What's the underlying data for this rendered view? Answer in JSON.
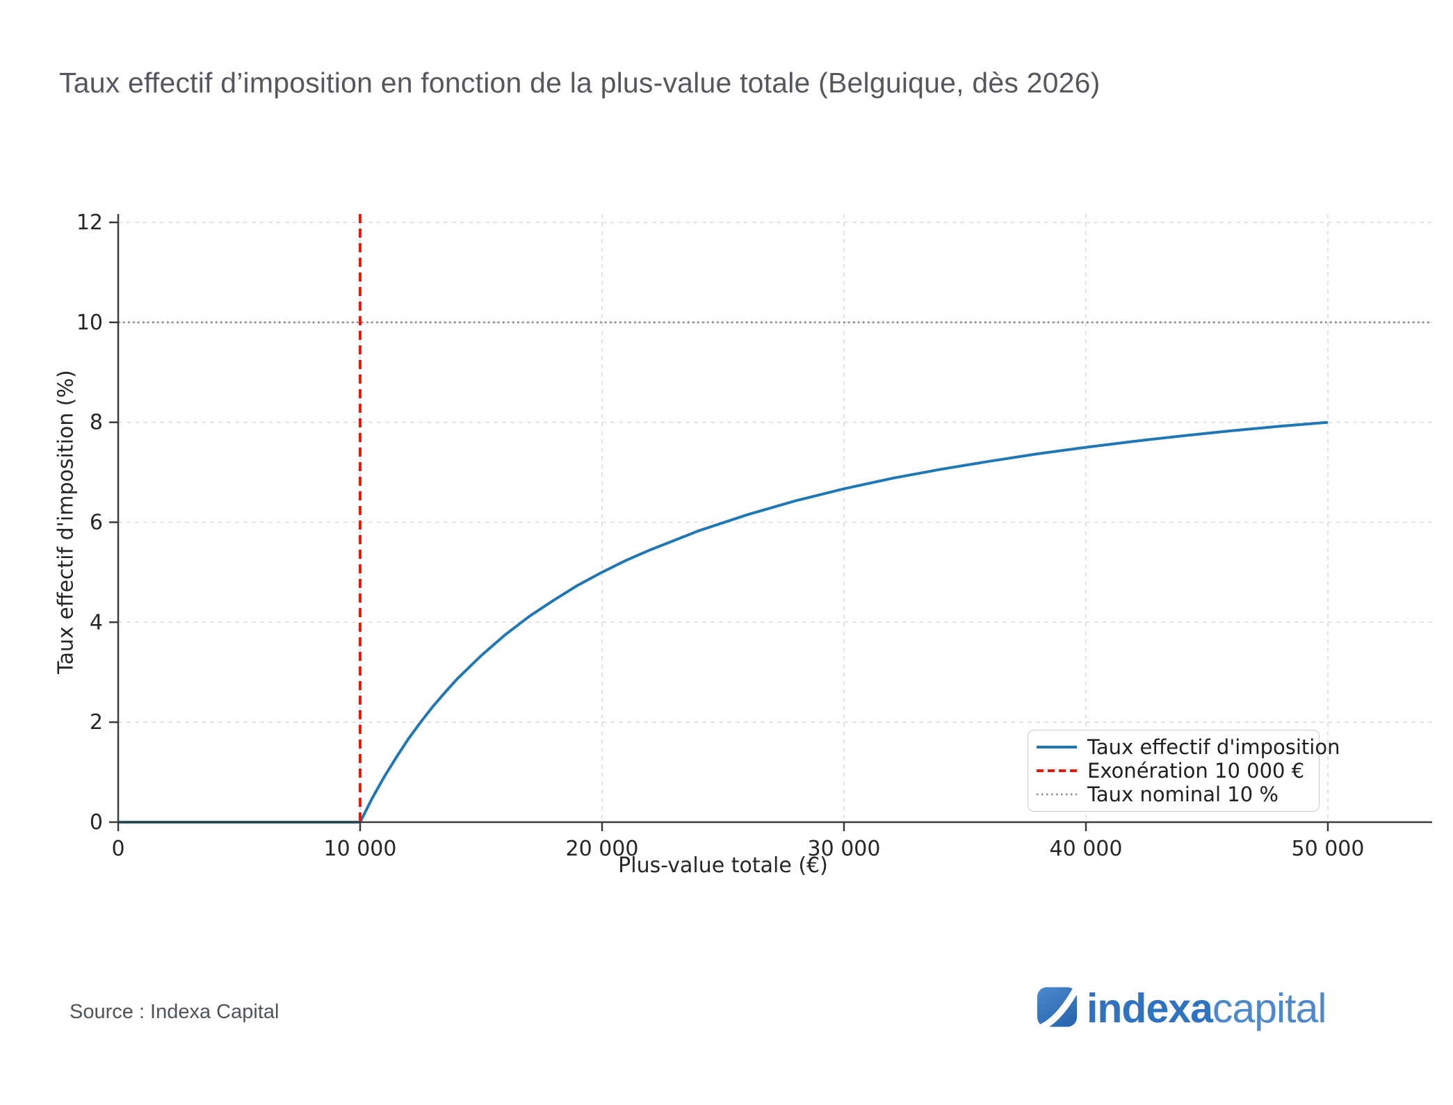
{
  "title": "Taux effectif d’imposition en fonction de la plus-value totale (Belguique, dès 2026)",
  "source": "Source : Indexa Capital",
  "logo": {
    "bold": "indexa",
    "light": "capital"
  },
  "colors": {
    "curve": "#1f77b4",
    "exoneration": "#e8190c",
    "nominal": "#8a8a8a",
    "grid": "#dcdcdc",
    "spine": "#3a3a3a",
    "tick_label": "#262626"
  },
  "chart_data": {
    "type": "line",
    "title": "Taux effectif d’imposition en fonction de la plus-value totale (Belguique, dès 2026)",
    "xlabel": "Plus-value totale (€)",
    "ylabel": "Taux effectif d'imposition (%)",
    "xlim": [
      0,
      50000
    ],
    "ylim": [
      0,
      12
    ],
    "x_ticks": [
      0,
      10000,
      20000,
      30000,
      40000,
      50000
    ],
    "x_tick_labels": [
      "0",
      "10 000",
      "20 000",
      "30 000",
      "40 000",
      "50 000"
    ],
    "y_ticks": [
      0,
      2,
      4,
      6,
      8,
      10,
      12
    ],
    "y_tick_labels": [
      "0",
      "2",
      "4",
      "6",
      "8",
      "10",
      "12"
    ],
    "grid": true,
    "legend_position": "lower right",
    "series": [
      {
        "name": "Taux effectif d'imposition",
        "kind": "line",
        "style": "solid",
        "color": "#1f77b4",
        "formula": "y = max(0, 10 * (1 - 10000/x)) %",
        "points": [
          [
            0,
            0
          ],
          [
            5000,
            0
          ],
          [
            10000,
            0
          ],
          [
            10500,
            0.48
          ],
          [
            11000,
            0.91
          ],
          [
            11500,
            1.3
          ],
          [
            12000,
            1.67
          ],
          [
            12500,
            2.0
          ],
          [
            13000,
            2.31
          ],
          [
            13500,
            2.59
          ],
          [
            14000,
            2.86
          ],
          [
            15000,
            3.33
          ],
          [
            16000,
            3.75
          ],
          [
            17000,
            4.12
          ],
          [
            18000,
            4.44
          ],
          [
            19000,
            4.74
          ],
          [
            20000,
            5.0
          ],
          [
            21000,
            5.24
          ],
          [
            22000,
            5.45
          ],
          [
            24000,
            5.83
          ],
          [
            26000,
            6.15
          ],
          [
            28000,
            6.43
          ],
          [
            30000,
            6.67
          ],
          [
            32000,
            6.88
          ],
          [
            34000,
            7.06
          ],
          [
            36000,
            7.22
          ],
          [
            38000,
            7.37
          ],
          [
            40000,
            7.5
          ],
          [
            42000,
            7.62
          ],
          [
            44000,
            7.73
          ],
          [
            46000,
            7.83
          ],
          [
            48000,
            7.92
          ],
          [
            50000,
            8.0
          ]
        ]
      },
      {
        "name": "Exonération 10 000 €",
        "kind": "vline",
        "style": "dashed",
        "color": "#e8190c",
        "x": 10000
      },
      {
        "name": "Taux nominal 10 %",
        "kind": "hline",
        "style": "dotted",
        "color": "#8a8a8a",
        "y": 10
      }
    ]
  }
}
